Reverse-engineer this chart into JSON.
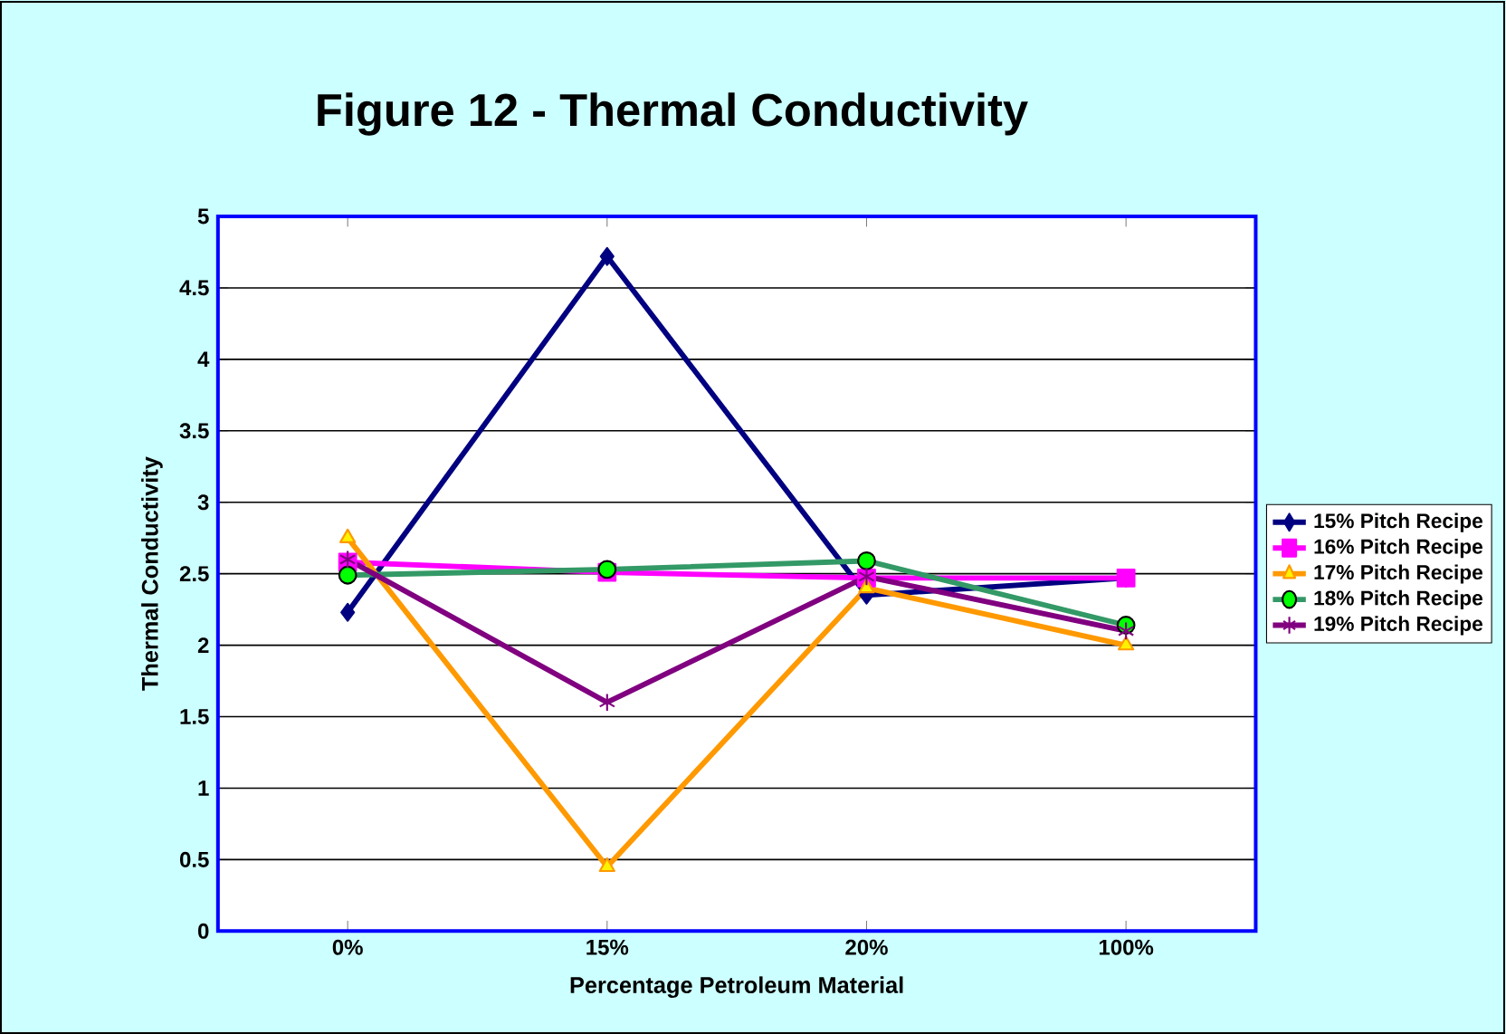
{
  "chart_data": {
    "type": "line",
    "title": "Figure 12 - Thermal Conductivity",
    "xlabel": "Percentage Petroleum Material",
    "ylabel": "Thermal Conductivity",
    "categories": [
      "0%",
      "15%",
      "20%",
      "100%"
    ],
    "series": [
      {
        "name": "15% Pitch Recipe",
        "color": "#000080",
        "marker": "diamond",
        "values": [
          2.23,
          4.72,
          2.35,
          2.47
        ]
      },
      {
        "name": "16% Pitch Recipe",
        "color": "#ff00ff",
        "marker": "square",
        "values": [
          2.58,
          2.51,
          2.47,
          2.47
        ]
      },
      {
        "name": "17% Pitch Recipe",
        "color": "#ff9900",
        "marker": "triangle",
        "values": [
          2.75,
          0.45,
          2.4,
          2.0
        ]
      },
      {
        "name": "18% Pitch Recipe",
        "color": "#339966",
        "marker": "circle",
        "values": [
          2.49,
          2.53,
          2.59,
          2.14
        ]
      },
      {
        "name": "19% Pitch Recipe",
        "color": "#800080",
        "marker": "cross",
        "values": [
          2.6,
          1.6,
          2.48,
          2.1
        ]
      }
    ],
    "ylim": [
      0,
      5
    ],
    "yticks": [
      0,
      0.5,
      1,
      1.5,
      2,
      2.5,
      3,
      3.5,
      4,
      4.5,
      5
    ],
    "grid": "y",
    "legend": "right",
    "line_style": "solid"
  }
}
